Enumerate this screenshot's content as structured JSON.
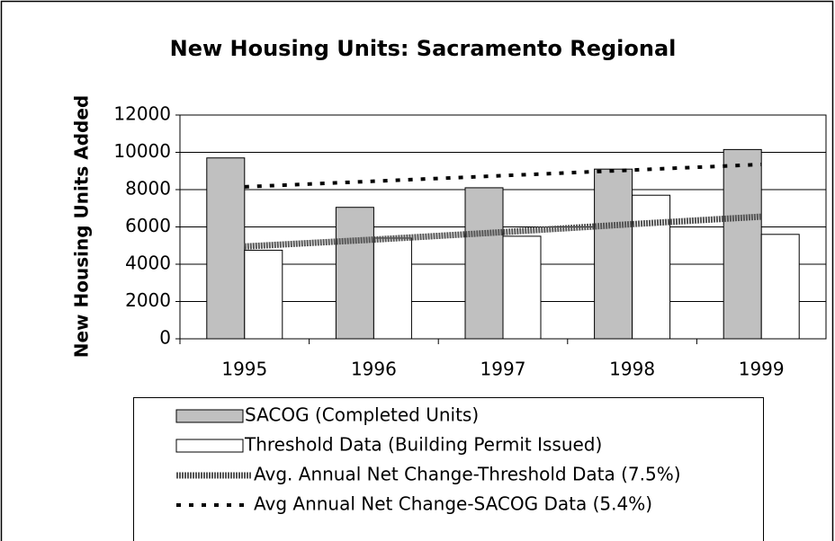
{
  "chart_data": {
    "type": "bar",
    "title": "New Housing Units:  Sacramento Regional",
    "y_label": "New Housing Units Added",
    "categories": [
      "1995",
      "1996",
      "1997",
      "1998",
      "1999"
    ],
    "series": [
      {
        "name": "SACOG (Completed Units)",
        "type": "bar",
        "color": "#c0c0c0",
        "values": [
          9700,
          7050,
          8100,
          9100,
          10150
        ]
      },
      {
        "name": "Threshold Data (Building Permit Issued)",
        "type": "bar",
        "color": "#ffffff",
        "values": [
          4750,
          5400,
          5500,
          7700,
          5600
        ]
      },
      {
        "name": "Avg. Annual Net Change-Threshold Data (7.5%)",
        "type": "line",
        "style": "solid",
        "color": "#555555",
        "values": [
          4950,
          5320,
          5720,
          6150,
          6550
        ]
      },
      {
        "name": "Avg Annual Net Change-SACOG Data (5.4%)",
        "type": "line",
        "style": "dotted",
        "color": "#000000",
        "values": [
          8150,
          8450,
          8750,
          9050,
          9350
        ]
      }
    ],
    "ylim": [
      0,
      12000
    ],
    "yticks": [
      0,
      2000,
      4000,
      6000,
      8000,
      10000,
      12000
    ],
    "grid": true,
    "legend": "bottom"
  }
}
